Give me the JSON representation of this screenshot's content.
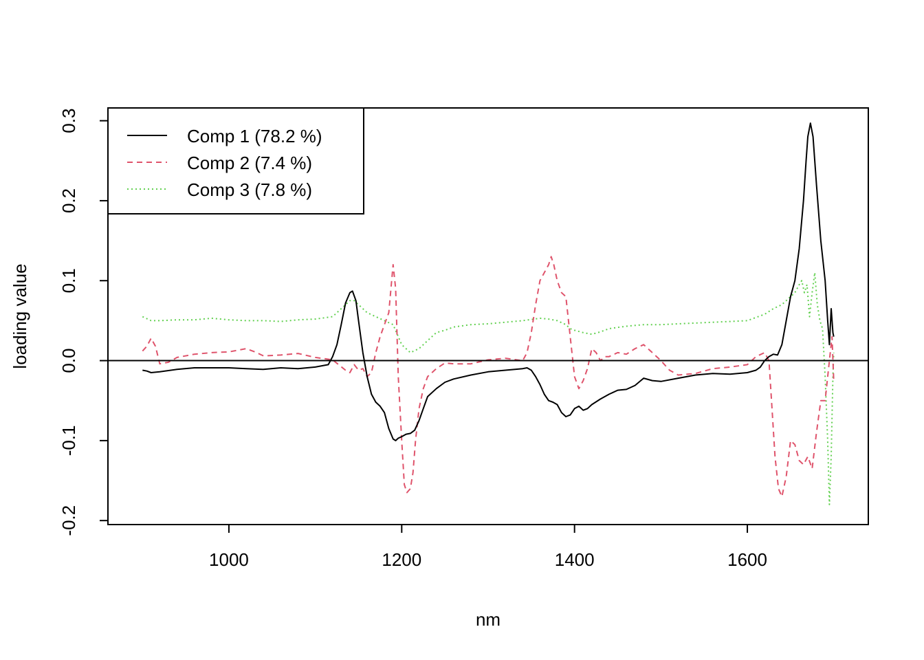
{
  "chart_data": {
    "type": "line",
    "title": "",
    "xlabel": "nm",
    "ylabel": "loading value",
    "xlim": [
      860,
      1740
    ],
    "ylim": [
      -0.205,
      0.316
    ],
    "x_ticks": [
      1000,
      1200,
      1400,
      1600
    ],
    "x_tick_labels": [
      "1000",
      "1200",
      "1400",
      "1600"
    ],
    "y_ticks": [
      -0.2,
      -0.1,
      0.0,
      0.1,
      0.2,
      0.3
    ],
    "y_tick_labels": [
      "-0.2",
      "-0.1",
      "0.0",
      "0.1",
      "0.2",
      "0.3"
    ],
    "grid": false,
    "reference_line": {
      "y": 0,
      "color": "#000000"
    },
    "legend_position": "top-left",
    "series": [
      {
        "name": "Comp 1 (78.2 %)",
        "color": "#000000",
        "dash": "solid",
        "x": [
          900,
          905,
          910,
          920,
          940,
          960,
          980,
          1000,
          1020,
          1040,
          1060,
          1080,
          1100,
          1115,
          1120,
          1125,
          1130,
          1135,
          1140,
          1143,
          1147,
          1150,
          1155,
          1160,
          1165,
          1170,
          1175,
          1180,
          1185,
          1190,
          1193,
          1196,
          1200,
          1205,
          1210,
          1215,
          1220,
          1225,
          1230,
          1240,
          1250,
          1260,
          1280,
          1300,
          1320,
          1340,
          1345,
          1350,
          1355,
          1360,
          1365,
          1370,
          1375,
          1380,
          1385,
          1390,
          1395,
          1400,
          1405,
          1410,
          1415,
          1420,
          1430,
          1440,
          1450,
          1460,
          1470,
          1480,
          1490,
          1500,
          1520,
          1540,
          1560,
          1580,
          1600,
          1610,
          1615,
          1620,
          1625,
          1630,
          1635,
          1640,
          1645,
          1650,
          1655,
          1660,
          1665,
          1668,
          1670,
          1673,
          1676,
          1680,
          1685,
          1690,
          1693,
          1695,
          1697,
          1699,
          1700
        ],
        "y": [
          -0.012,
          -0.013,
          -0.015,
          -0.014,
          -0.011,
          -0.009,
          -0.009,
          -0.009,
          -0.01,
          -0.011,
          -0.009,
          -0.01,
          -0.008,
          -0.005,
          0.005,
          0.02,
          0.045,
          0.072,
          0.085,
          0.087,
          0.075,
          0.05,
          0.01,
          -0.02,
          -0.042,
          -0.052,
          -0.057,
          -0.065,
          -0.085,
          -0.098,
          -0.1,
          -0.097,
          -0.095,
          -0.092,
          -0.091,
          -0.087,
          -0.075,
          -0.06,
          -0.045,
          -0.035,
          -0.027,
          -0.023,
          -0.018,
          -0.014,
          -0.012,
          -0.01,
          -0.009,
          -0.012,
          -0.02,
          -0.03,
          -0.042,
          -0.05,
          -0.052,
          -0.055,
          -0.065,
          -0.07,
          -0.068,
          -0.06,
          -0.057,
          -0.062,
          -0.06,
          -0.055,
          -0.048,
          -0.042,
          -0.037,
          -0.036,
          -0.031,
          -0.022,
          -0.025,
          -0.026,
          -0.022,
          -0.018,
          -0.016,
          -0.017,
          -0.015,
          -0.012,
          -0.008,
          0.0,
          0.005,
          0.008,
          0.007,
          0.02,
          0.05,
          0.08,
          0.1,
          0.14,
          0.2,
          0.25,
          0.28,
          0.297,
          0.28,
          0.22,
          0.15,
          0.1,
          0.05,
          0.02,
          0.065,
          0.035,
          0.03
        ]
      },
      {
        "name": "Comp 2 (7.4 %)",
        "color": "#DF536B",
        "dash": "8,6",
        "x": [
          900,
          905,
          910,
          915,
          920,
          930,
          940,
          960,
          980,
          1000,
          1020,
          1030,
          1040,
          1060,
          1080,
          1100,
          1120,
          1135,
          1140,
          1145,
          1150,
          1155,
          1160,
          1165,
          1170,
          1175,
          1180,
          1185,
          1190,
          1193,
          1196,
          1200,
          1203,
          1206,
          1210,
          1213,
          1216,
          1220,
          1225,
          1230,
          1240,
          1250,
          1260,
          1280,
          1300,
          1320,
          1340,
          1345,
          1350,
          1355,
          1360,
          1365,
          1370,
          1373,
          1376,
          1380,
          1385,
          1390,
          1395,
          1400,
          1405,
          1410,
          1415,
          1420,
          1425,
          1430,
          1435,
          1440,
          1450,
          1460,
          1470,
          1480,
          1490,
          1500,
          1510,
          1520,
          1540,
          1560,
          1580,
          1600,
          1610,
          1620,
          1625,
          1628,
          1632,
          1636,
          1640,
          1645,
          1650,
          1655,
          1660,
          1665,
          1670,
          1675,
          1680,
          1685,
          1690,
          1695,
          1698,
          1700
        ],
        "y": [
          0.012,
          0.018,
          0.028,
          0.018,
          -0.004,
          -0.002,
          0.004,
          0.008,
          0.01,
          0.011,
          0.015,
          0.011,
          0.006,
          0.007,
          0.009,
          0.004,
          0.001,
          -0.012,
          -0.015,
          -0.005,
          -0.012,
          -0.01,
          -0.02,
          -0.015,
          0.01,
          0.03,
          0.045,
          0.06,
          0.12,
          0.09,
          -0.02,
          -0.1,
          -0.155,
          -0.165,
          -0.16,
          -0.14,
          -0.1,
          -0.06,
          -0.035,
          -0.02,
          -0.01,
          -0.003,
          -0.004,
          -0.004,
          0.001,
          0.003,
          0.0,
          0.01,
          0.035,
          0.07,
          0.1,
          0.11,
          0.12,
          0.13,
          0.12,
          0.1,
          0.085,
          0.08,
          0.03,
          -0.02,
          -0.035,
          -0.025,
          -0.01,
          0.015,
          0.01,
          0.0,
          0.005,
          0.005,
          0.01,
          0.008,
          0.015,
          0.02,
          0.01,
          0.0,
          -0.012,
          -0.018,
          -0.016,
          -0.01,
          -0.008,
          -0.005,
          0.005,
          0.01,
          0.0,
          -0.05,
          -0.12,
          -0.16,
          -0.17,
          -0.145,
          -0.1,
          -0.105,
          -0.125,
          -0.13,
          -0.12,
          -0.135,
          -0.09,
          -0.05,
          -0.05,
          0.0,
          0.03,
          -0.025
        ]
      },
      {
        "name": "Comp 3 (7.8 %)",
        "color": "#61D04F",
        "dash": "2,4",
        "x": [
          900,
          910,
          920,
          940,
          960,
          980,
          1000,
          1020,
          1040,
          1060,
          1080,
          1100,
          1120,
          1130,
          1140,
          1145,
          1150,
          1160,
          1170,
          1180,
          1190,
          1200,
          1210,
          1220,
          1230,
          1240,
          1250,
          1260,
          1280,
          1300,
          1320,
          1340,
          1360,
          1370,
          1380,
          1390,
          1395,
          1400,
          1410,
          1420,
          1430,
          1440,
          1460,
          1480,
          1500,
          1520,
          1540,
          1560,
          1580,
          1600,
          1620,
          1630,
          1640,
          1645,
          1650,
          1655,
          1660,
          1663,
          1666,
          1669,
          1672,
          1675,
          1678,
          1681,
          1684,
          1687,
          1690,
          1693,
          1695,
          1697,
          1699,
          1700
        ],
        "y": [
          0.055,
          0.05,
          0.05,
          0.051,
          0.051,
          0.053,
          0.051,
          0.05,
          0.05,
          0.049,
          0.051,
          0.052,
          0.055,
          0.065,
          0.075,
          0.075,
          0.07,
          0.06,
          0.055,
          0.05,
          0.045,
          0.02,
          0.01,
          0.015,
          0.025,
          0.035,
          0.038,
          0.042,
          0.045,
          0.046,
          0.048,
          0.05,
          0.053,
          0.052,
          0.05,
          0.045,
          0.04,
          0.038,
          0.035,
          0.033,
          0.036,
          0.04,
          0.043,
          0.045,
          0.045,
          0.046,
          0.047,
          0.048,
          0.049,
          0.05,
          0.058,
          0.065,
          0.07,
          0.075,
          0.08,
          0.085,
          0.095,
          0.1,
          0.085,
          0.095,
          0.055,
          0.085,
          0.11,
          0.07,
          0.05,
          0.04,
          -0.02,
          -0.1,
          -0.18,
          -0.12,
          -0.02,
          0.01
        ]
      }
    ]
  }
}
